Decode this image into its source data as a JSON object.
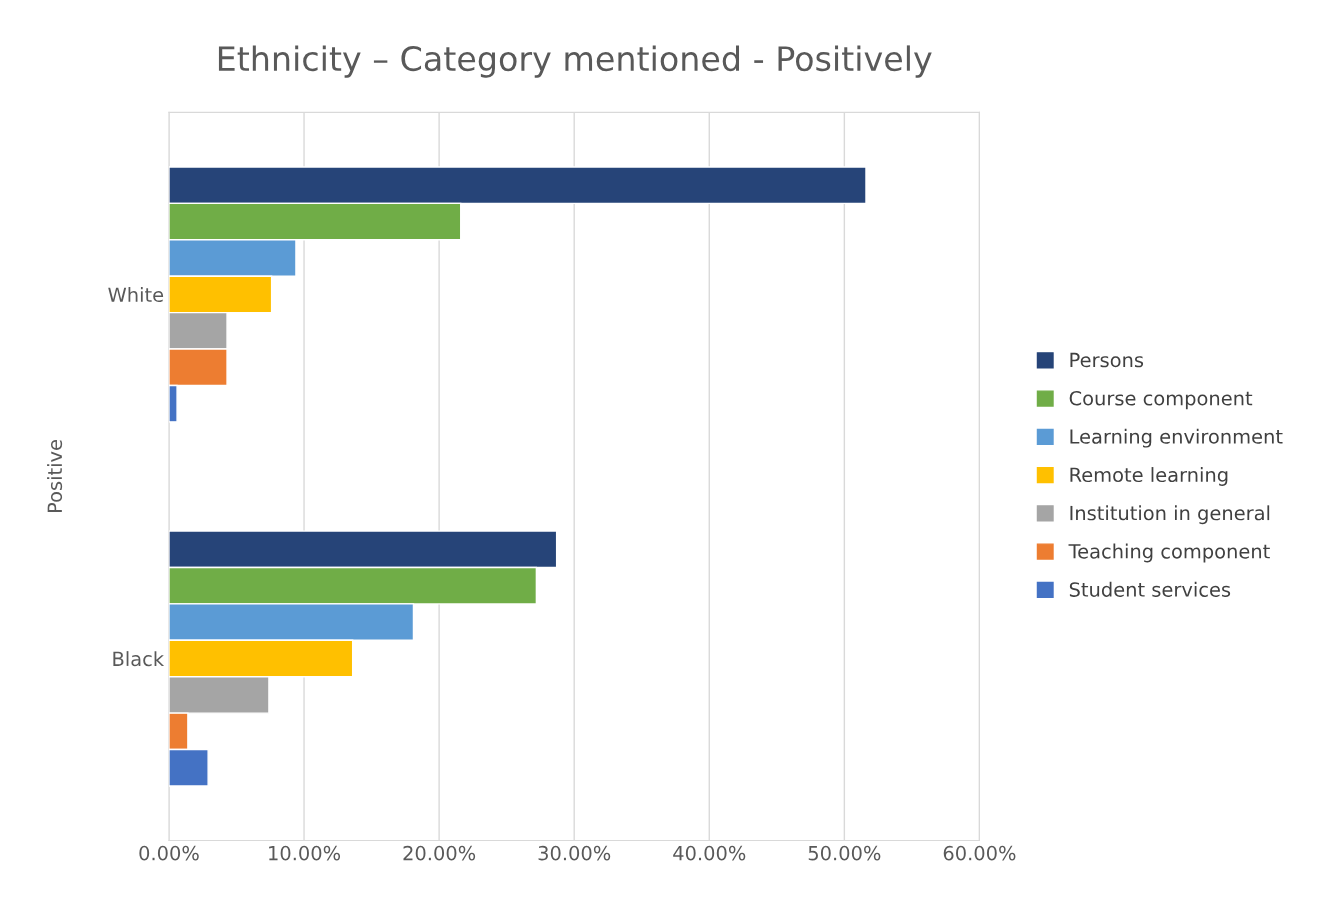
{
  "chart_data": {
    "type": "bar",
    "orientation": "horizontal",
    "title": "Ethnicity – Category mentioned - Positively",
    "ylabel": "Positive",
    "categories": [
      "White",
      "Black"
    ],
    "series": [
      {
        "name": "Persons",
        "color": "#264478",
        "values": [
          51.6,
          28.7
        ]
      },
      {
        "name": "Course component",
        "color": "#70ad47",
        "values": [
          21.6,
          27.2
        ]
      },
      {
        "name": "Learning environment",
        "color": "#5b9bd5",
        "values": [
          9.4,
          18.1
        ]
      },
      {
        "name": "Remote learning",
        "color": "#ffc000",
        "values": [
          7.6,
          13.6
        ]
      },
      {
        "name": "Institution in general",
        "color": "#a5a5a5",
        "values": [
          4.3,
          7.4
        ]
      },
      {
        "name": "Teaching component",
        "color": "#ed7d31",
        "values": [
          4.3,
          1.4
        ]
      },
      {
        "name": "Student services",
        "color": "#4472c4",
        "values": [
          0.6,
          2.9
        ]
      }
    ],
    "xlim": [
      0,
      60
    ],
    "xticks": [
      {
        "value": 0,
        "label": "0.00%"
      },
      {
        "value": 10,
        "label": "10.00%"
      },
      {
        "value": 20,
        "label": "20.00%"
      },
      {
        "value": 30,
        "label": "30.00%"
      },
      {
        "value": 40,
        "label": "40.00%"
      },
      {
        "value": 50,
        "label": "50.00%"
      },
      {
        "value": 60,
        "label": "60.00%"
      }
    ],
    "grid": "x",
    "legend": "right"
  }
}
